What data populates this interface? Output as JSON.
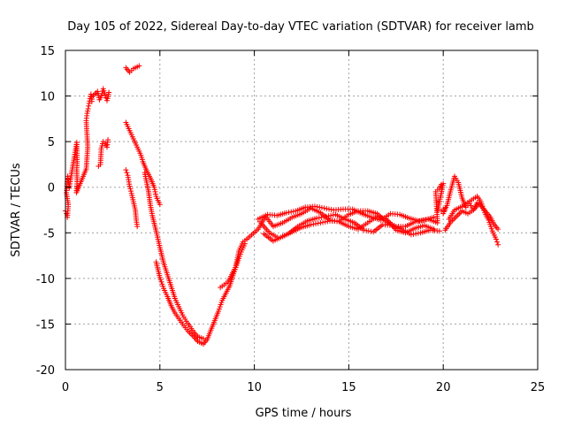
{
  "chart_data": {
    "type": "scatter",
    "title": "Day 105 of 2022, Sidereal Day-to-day VTEC variation (SDTVAR) for receiver lamb",
    "xlabel": "GPS time / hours",
    "ylabel": "SDTVAR / TECUs",
    "xlim": [
      0,
      25
    ],
    "ylim": [
      -20,
      15
    ],
    "xticks": [
      0,
      5,
      10,
      15,
      20,
      25
    ],
    "yticks": [
      -20,
      -15,
      -10,
      -5,
      0,
      5,
      10,
      15
    ],
    "xtick_labels": [
      "0",
      "5",
      "10",
      "15",
      "20",
      "25"
    ],
    "ytick_labels": [
      "-20",
      "-15",
      "-10",
      "-5",
      "0",
      "5",
      "10",
      "15"
    ],
    "grid": true,
    "marker": "+",
    "color": "#ff0000",
    "series": [
      {
        "name": "SDTVAR",
        "points": [
          [
            0.0,
            -2.6
          ],
          [
            0.05,
            -2.9
          ],
          [
            0.1,
            -3.3
          ],
          [
            0.15,
            -1.9
          ],
          [
            0.05,
            -0.6
          ],
          [
            0.1,
            0.6
          ],
          [
            0.12,
            1.2
          ],
          [
            0.2,
            -0.1
          ],
          [
            0.25,
            0.6
          ],
          [
            0.6,
            4.9
          ],
          [
            0.62,
            2.8
          ],
          [
            0.6,
            1.9
          ],
          [
            0.62,
            0.6
          ],
          [
            0.58,
            -0.6
          ],
          [
            1.1,
            2.0
          ],
          [
            1.15,
            3.5
          ],
          [
            1.18,
            4.4
          ],
          [
            1.1,
            7.3
          ],
          [
            1.15,
            8.1
          ],
          [
            1.2,
            8.6
          ],
          [
            1.25,
            9.2
          ],
          [
            1.35,
            10.2
          ],
          [
            1.4,
            9.4
          ],
          [
            1.4,
            9.9
          ],
          [
            1.7,
            10.5
          ],
          [
            1.8,
            9.6
          ],
          [
            1.9,
            10.0
          ],
          [
            2.0,
            10.8
          ],
          [
            2.1,
            10.1
          ],
          [
            2.2,
            9.5
          ],
          [
            2.3,
            10.4
          ],
          [
            1.75,
            2.3
          ],
          [
            1.85,
            2.5
          ],
          [
            1.9,
            4.3
          ],
          [
            2.0,
            5.0
          ],
          [
            2.1,
            4.8
          ],
          [
            2.2,
            4.4
          ],
          [
            2.25,
            5.2
          ],
          [
            3.2,
            13.1
          ],
          [
            3.4,
            12.6
          ],
          [
            3.6,
            13.0
          ],
          [
            3.8,
            13.2
          ],
          [
            3.9,
            13.3
          ],
          [
            3.2,
            7.1
          ],
          [
            3.4,
            6.2
          ],
          [
            3.6,
            5.3
          ],
          [
            3.8,
            4.4
          ],
          [
            4.0,
            3.5
          ],
          [
            4.1,
            2.8
          ],
          [
            4.3,
            1.8
          ],
          [
            4.5,
            1.0
          ],
          [
            4.7,
            0.0
          ],
          [
            4.8,
            -1.0
          ],
          [
            5.0,
            -1.9
          ],
          [
            3.2,
            1.9
          ],
          [
            3.3,
            1.3
          ],
          [
            3.4,
            0.1
          ],
          [
            3.5,
            -0.7
          ],
          [
            3.6,
            -1.6
          ],
          [
            3.7,
            -2.5
          ],
          [
            3.75,
            -3.6
          ],
          [
            3.8,
            -4.3
          ],
          [
            4.2,
            1.6
          ],
          [
            4.4,
            -0.5
          ],
          [
            4.5,
            -2.0
          ],
          [
            4.6,
            -3.1
          ],
          [
            4.8,
            -4.8
          ],
          [
            5.0,
            -6.6
          ],
          [
            5.2,
            -8.3
          ],
          [
            5.4,
            -9.6
          ],
          [
            5.6,
            -10.9
          ],
          [
            5.8,
            -12.2
          ],
          [
            6.0,
            -13.1
          ],
          [
            6.2,
            -14.0
          ],
          [
            6.4,
            -14.7
          ],
          [
            6.6,
            -15.3
          ],
          [
            6.8,
            -15.9
          ],
          [
            7.0,
            -16.4
          ],
          [
            7.3,
            -16.6
          ],
          [
            4.8,
            -8.2
          ],
          [
            5.0,
            -9.9
          ],
          [
            5.2,
            -11.1
          ],
          [
            5.4,
            -12.0
          ],
          [
            5.6,
            -13.0
          ],
          [
            5.8,
            -13.8
          ],
          [
            6.0,
            -14.4
          ],
          [
            6.2,
            -15.0
          ],
          [
            6.5,
            -15.8
          ],
          [
            6.8,
            -16.4
          ],
          [
            7.0,
            -16.9
          ],
          [
            7.3,
            -17.2
          ],
          [
            7.5,
            -16.7
          ],
          [
            8.1,
            -13.6
          ],
          [
            8.3,
            -12.4
          ],
          [
            8.5,
            -11.6
          ],
          [
            8.7,
            -10.8
          ],
          [
            8.9,
            -9.5
          ],
          [
            9.1,
            -8.3
          ],
          [
            9.3,
            -7.1
          ],
          [
            9.5,
            -6.2
          ],
          [
            8.2,
            -11.0
          ],
          [
            8.6,
            -10.4
          ],
          [
            9.0,
            -8.8
          ],
          [
            9.2,
            -6.9
          ],
          [
            9.4,
            -6.0
          ],
          [
            9.6,
            -5.7
          ],
          [
            10.2,
            -4.6
          ],
          [
            10.6,
            -3.2
          ],
          [
            11.0,
            -4.3
          ],
          [
            11.5,
            -3.9
          ],
          [
            12.0,
            -3.3
          ],
          [
            12.5,
            -2.9
          ],
          [
            13.0,
            -2.3
          ],
          [
            13.5,
            -2.8
          ],
          [
            14.0,
            -3.6
          ],
          [
            14.5,
            -3.8
          ],
          [
            15.0,
            -4.3
          ],
          [
            15.5,
            -4.6
          ],
          [
            16.0,
            -3.9
          ],
          [
            16.5,
            -3.2
          ],
          [
            17.0,
            -3.5
          ],
          [
            17.5,
            -4.7
          ],
          [
            18.0,
            -5.0
          ],
          [
            18.5,
            -4.5
          ],
          [
            19.0,
            -4.2
          ],
          [
            19.5,
            -4.6
          ],
          [
            10.3,
            -3.8
          ],
          [
            10.8,
            -5.0
          ],
          [
            11.3,
            -5.6
          ],
          [
            11.8,
            -5.1
          ],
          [
            12.3,
            -4.3
          ],
          [
            12.8,
            -3.7
          ],
          [
            13.3,
            -3.4
          ],
          [
            13.8,
            -3.2
          ],
          [
            14.3,
            -3.0
          ],
          [
            14.8,
            -3.5
          ],
          [
            15.3,
            -3.9
          ],
          [
            15.8,
            -4.7
          ],
          [
            16.3,
            -4.9
          ],
          [
            16.8,
            -4.1
          ],
          [
            17.3,
            -4.2
          ],
          [
            17.8,
            -4.6
          ],
          [
            18.3,
            -5.2
          ],
          [
            18.8,
            -5.0
          ],
          [
            19.3,
            -4.7
          ],
          [
            19.8,
            -4.8
          ],
          [
            10.5,
            -5.1
          ],
          [
            11.0,
            -5.9
          ],
          [
            11.5,
            -5.4
          ],
          [
            12.0,
            -4.9
          ],
          [
            12.5,
            -4.4
          ],
          [
            13.0,
            -4.1
          ],
          [
            13.5,
            -3.9
          ],
          [
            14.0,
            -3.7
          ],
          [
            14.5,
            -3.7
          ],
          [
            15.0,
            -3.0
          ],
          [
            15.5,
            -2.6
          ],
          [
            16.0,
            -2.6
          ],
          [
            16.5,
            -2.9
          ],
          [
            17.0,
            -3.8
          ],
          [
            17.5,
            -4.3
          ],
          [
            18.0,
            -4.3
          ],
          [
            18.5,
            -3.8
          ],
          [
            19.0,
            -3.6
          ],
          [
            19.5,
            -3.3
          ],
          [
            10.2,
            -3.5
          ],
          [
            10.7,
            -3.0
          ],
          [
            11.2,
            -3.1
          ],
          [
            11.7,
            -2.8
          ],
          [
            12.2,
            -2.6
          ],
          [
            12.7,
            -2.2
          ],
          [
            13.2,
            -2.1
          ],
          [
            13.7,
            -2.3
          ],
          [
            14.2,
            -2.5
          ],
          [
            14.7,
            -2.4
          ],
          [
            15.2,
            -2.4
          ],
          [
            15.7,
            -2.9
          ],
          [
            16.2,
            -3.3
          ],
          [
            16.7,
            -3.6
          ],
          [
            17.2,
            -2.9
          ],
          [
            17.7,
            -3.0
          ],
          [
            18.2,
            -3.4
          ],
          [
            18.7,
            -3.7
          ],
          [
            19.2,
            -3.5
          ],
          [
            19.7,
            -3.9
          ],
          [
            19.6,
            -0.5
          ],
          [
            19.8,
            -0.1
          ],
          [
            19.9,
            0.3
          ],
          [
            20.0,
            0.4
          ],
          [
            19.7,
            -2.6
          ],
          [
            19.9,
            -2.6
          ],
          [
            20.1,
            -2.3
          ],
          [
            20.0,
            -2.9
          ],
          [
            20.2,
            -2.0
          ],
          [
            20.4,
            -0.3
          ],
          [
            20.6,
            1.2
          ],
          [
            20.8,
            0.5
          ],
          [
            21.0,
            -1.2
          ],
          [
            21.2,
            -2.2
          ],
          [
            21.4,
            -1.8
          ],
          [
            21.6,
            -2.5
          ],
          [
            21.8,
            -1.7
          ],
          [
            20.1,
            -4.7
          ],
          [
            20.4,
            -3.8
          ],
          [
            20.7,
            -3.2
          ],
          [
            21.0,
            -2.6
          ],
          [
            21.3,
            -2.9
          ],
          [
            21.6,
            -2.5
          ],
          [
            21.9,
            -1.8
          ],
          [
            22.1,
            -2.3
          ],
          [
            22.3,
            -2.8
          ],
          [
            22.5,
            -3.3
          ],
          [
            22.7,
            -4.1
          ],
          [
            22.9,
            -4.6
          ],
          [
            20.3,
            -3.5
          ],
          [
            20.6,
            -2.5
          ],
          [
            21.0,
            -2.1
          ],
          [
            21.5,
            -1.4
          ],
          [
            21.8,
            -1.0
          ],
          [
            22.0,
            -1.6
          ],
          [
            22.2,
            -2.8
          ],
          [
            22.4,
            -3.6
          ],
          [
            22.6,
            -4.8
          ],
          [
            22.8,
            -5.7
          ],
          [
            22.9,
            -6.3
          ]
        ]
      }
    ]
  }
}
